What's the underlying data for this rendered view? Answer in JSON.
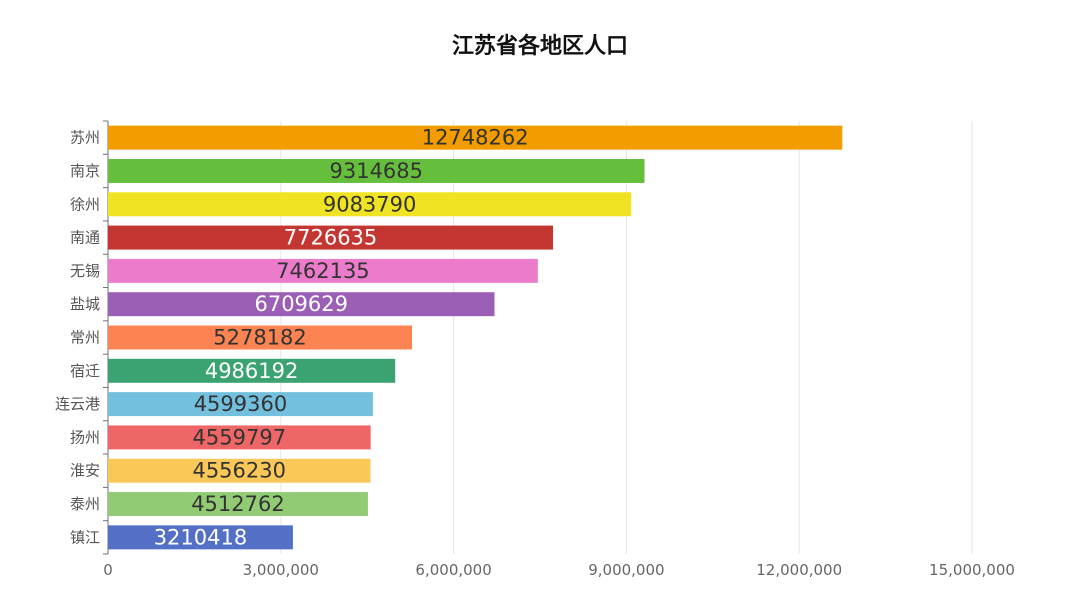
{
  "chart_data": {
    "type": "bar",
    "orientation": "horizontal",
    "title": "江苏省各地区人口",
    "xlabel": "",
    "ylabel": "",
    "xlim": [
      0,
      15000000
    ],
    "x_ticks": [
      "0",
      "3,000,000",
      "6,000,000",
      "9,000,000",
      "12,000,000",
      "15,000,000"
    ],
    "grid": "vertical",
    "bars": [
      {
        "category": "苏州",
        "value": 12748262,
        "label": "12748262",
        "color": "#F39C00",
        "label_color": "#333333"
      },
      {
        "category": "南京",
        "value": 9314685,
        "label": "9314685",
        "color": "#66BF3C",
        "label_color": "#333333"
      },
      {
        "category": "徐州",
        "value": 9083790,
        "label": "9083790",
        "color": "#F0E324",
        "label_color": "#333333"
      },
      {
        "category": "南通",
        "value": 7726635,
        "label": "7726635",
        "color": "#C33631",
        "label_color": "#ffffff"
      },
      {
        "category": "无锡",
        "value": 7462135,
        "label": "7462135",
        "color": "#EB7BCB",
        "label_color": "#333333"
      },
      {
        "category": "盐城",
        "value": 6709629,
        "label": "6709629",
        "color": "#9B5FB5",
        "label_color": "#ffffff"
      },
      {
        "category": "常州",
        "value": 5278182,
        "label": "5278182",
        "color": "#FC8452",
        "label_color": "#333333"
      },
      {
        "category": "宿迁",
        "value": 4986192,
        "label": "4986192",
        "color": "#3BA272",
        "label_color": "#ffffff"
      },
      {
        "category": "连云港",
        "value": 4599360,
        "label": "4599360",
        "color": "#73C0DE",
        "label_color": "#333333"
      },
      {
        "category": "扬州",
        "value": 4559797,
        "label": "4559797",
        "color": "#EE6666",
        "label_color": "#333333"
      },
      {
        "category": "淮安",
        "value": 4556230,
        "label": "4556230",
        "color": "#FAC858",
        "label_color": "#333333"
      },
      {
        "category": "泰州",
        "value": 4512762,
        "label": "4512762",
        "color": "#91CC75",
        "label_color": "#333333"
      },
      {
        "category": "镇江",
        "value": 3210418,
        "label": "3210418",
        "color": "#5470C6",
        "label_color": "#ffffff"
      }
    ]
  }
}
